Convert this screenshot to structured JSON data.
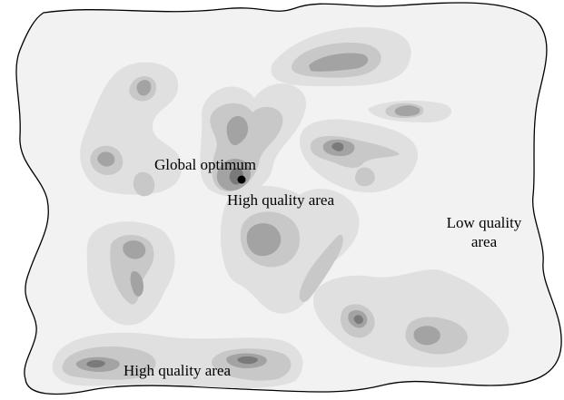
{
  "labels": {
    "global_optimum": "Global optimum",
    "high_quality_top": "High quality area",
    "low_quality_line1": "Low quality",
    "low_quality_line2": "area",
    "high_quality_bottom": "High quality area"
  },
  "colors": {
    "background": "#ffffff",
    "landscape": "#f2f2f2",
    "outline": "#000000",
    "level1": "#e0e0e0",
    "level2": "#c8c8c8",
    "level3": "#a3a3a3",
    "level4": "#7a7a7a",
    "optimum_point": "#000000"
  }
}
